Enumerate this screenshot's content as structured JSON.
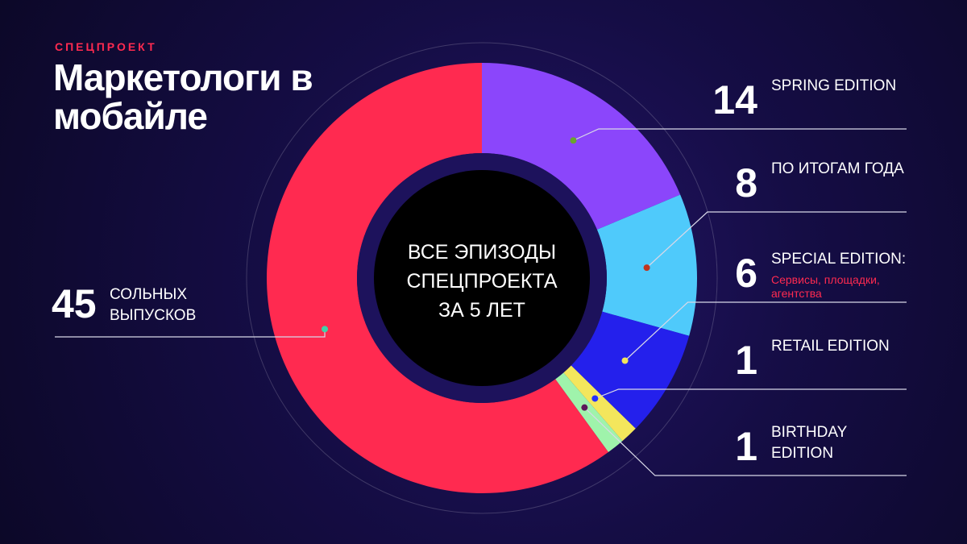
{
  "chart_data": {
    "type": "donut",
    "subtitle": "СПЕЦПРОЕКТ",
    "title": "Маркетологи в мобайле",
    "center_label": "ВСЕ ЭПИЗОДЫ СПЕЦПРОЕКТА ЗА 5 ЛЕТ",
    "categories": [
      "SPRING EDITION",
      "ПО ИТОГАМ ГОДА",
      "SPECIAL EDITION:",
      "RETAIL EDITION",
      "BIRTHDAY EDITION",
      "СОЛЬНЫХ ВЫПУСКОВ"
    ],
    "values": [
      14,
      8,
      6,
      1,
      1,
      45
    ],
    "colors": [
      "#8b46fb",
      "#4fcafb",
      "#2420ec",
      "#f3e65c",
      "#9ff3ab",
      "#ff2a50"
    ],
    "annotations": [
      "Сервисы, площадки, агентства"
    ]
  }
}
